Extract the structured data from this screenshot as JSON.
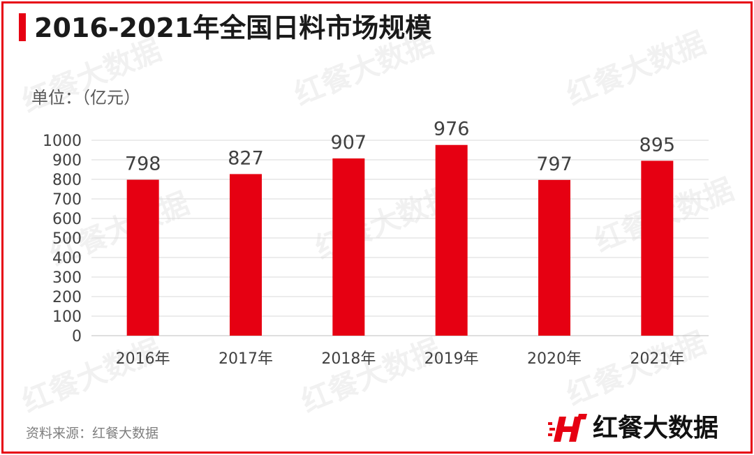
{
  "header": {
    "title": "2016-2021年全国日料市场规模"
  },
  "unit_label": "单位：（亿元）",
  "source": "资料来源：红餐大数据",
  "brand": {
    "name": "红餐大数据",
    "logo_icon": "red-h-logo-icon"
  },
  "watermark": "红餐大数据",
  "colors": {
    "accent": "#e60012",
    "bar": "#e60012",
    "grid": "#d9d9d9",
    "text": "#404040"
  },
  "chart_data": {
    "type": "bar",
    "title": "2016-2021年全国日料市场规模",
    "categories": [
      "2016年",
      "2017年",
      "2018年",
      "2019年",
      "2020年",
      "2021年"
    ],
    "values": [
      798,
      827,
      907,
      976,
      797,
      895
    ],
    "ylabel": "单位：（亿元）",
    "ylim": [
      0,
      1000
    ],
    "yticks": [
      0,
      100,
      200,
      300,
      400,
      500,
      600,
      700,
      800,
      900,
      1000
    ],
    "grid": true,
    "legend": "none"
  }
}
